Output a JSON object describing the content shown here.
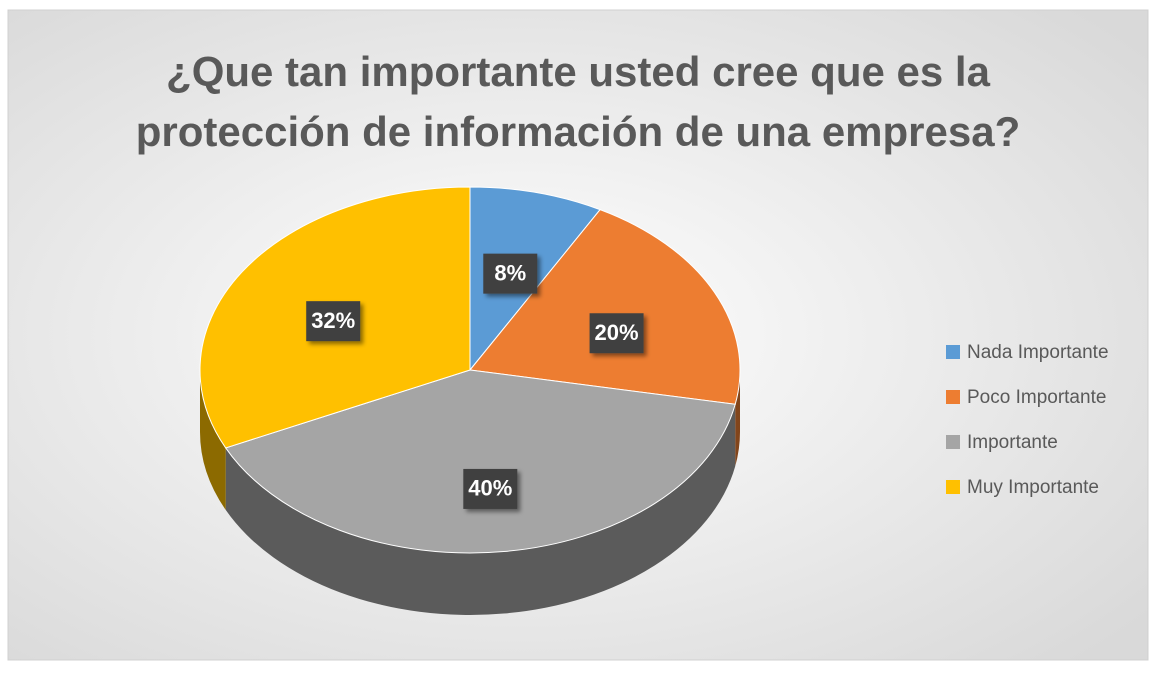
{
  "chart_data": {
    "type": "pie",
    "title": "¿Que tan importante usted cree que es la protección de información de una empresa?",
    "categories": [
      "Nada Importante",
      "Poco Importante",
      "Importante",
      "Muy Importante"
    ],
    "values": [
      8,
      20,
      40,
      32
    ],
    "value_labels": [
      "8%",
      "20%",
      "40%",
      "32%"
    ],
    "colors": [
      "#5b9bd5",
      "#ed7d31",
      "#a5a5a5",
      "#ffc000"
    ],
    "legend": "right"
  }
}
